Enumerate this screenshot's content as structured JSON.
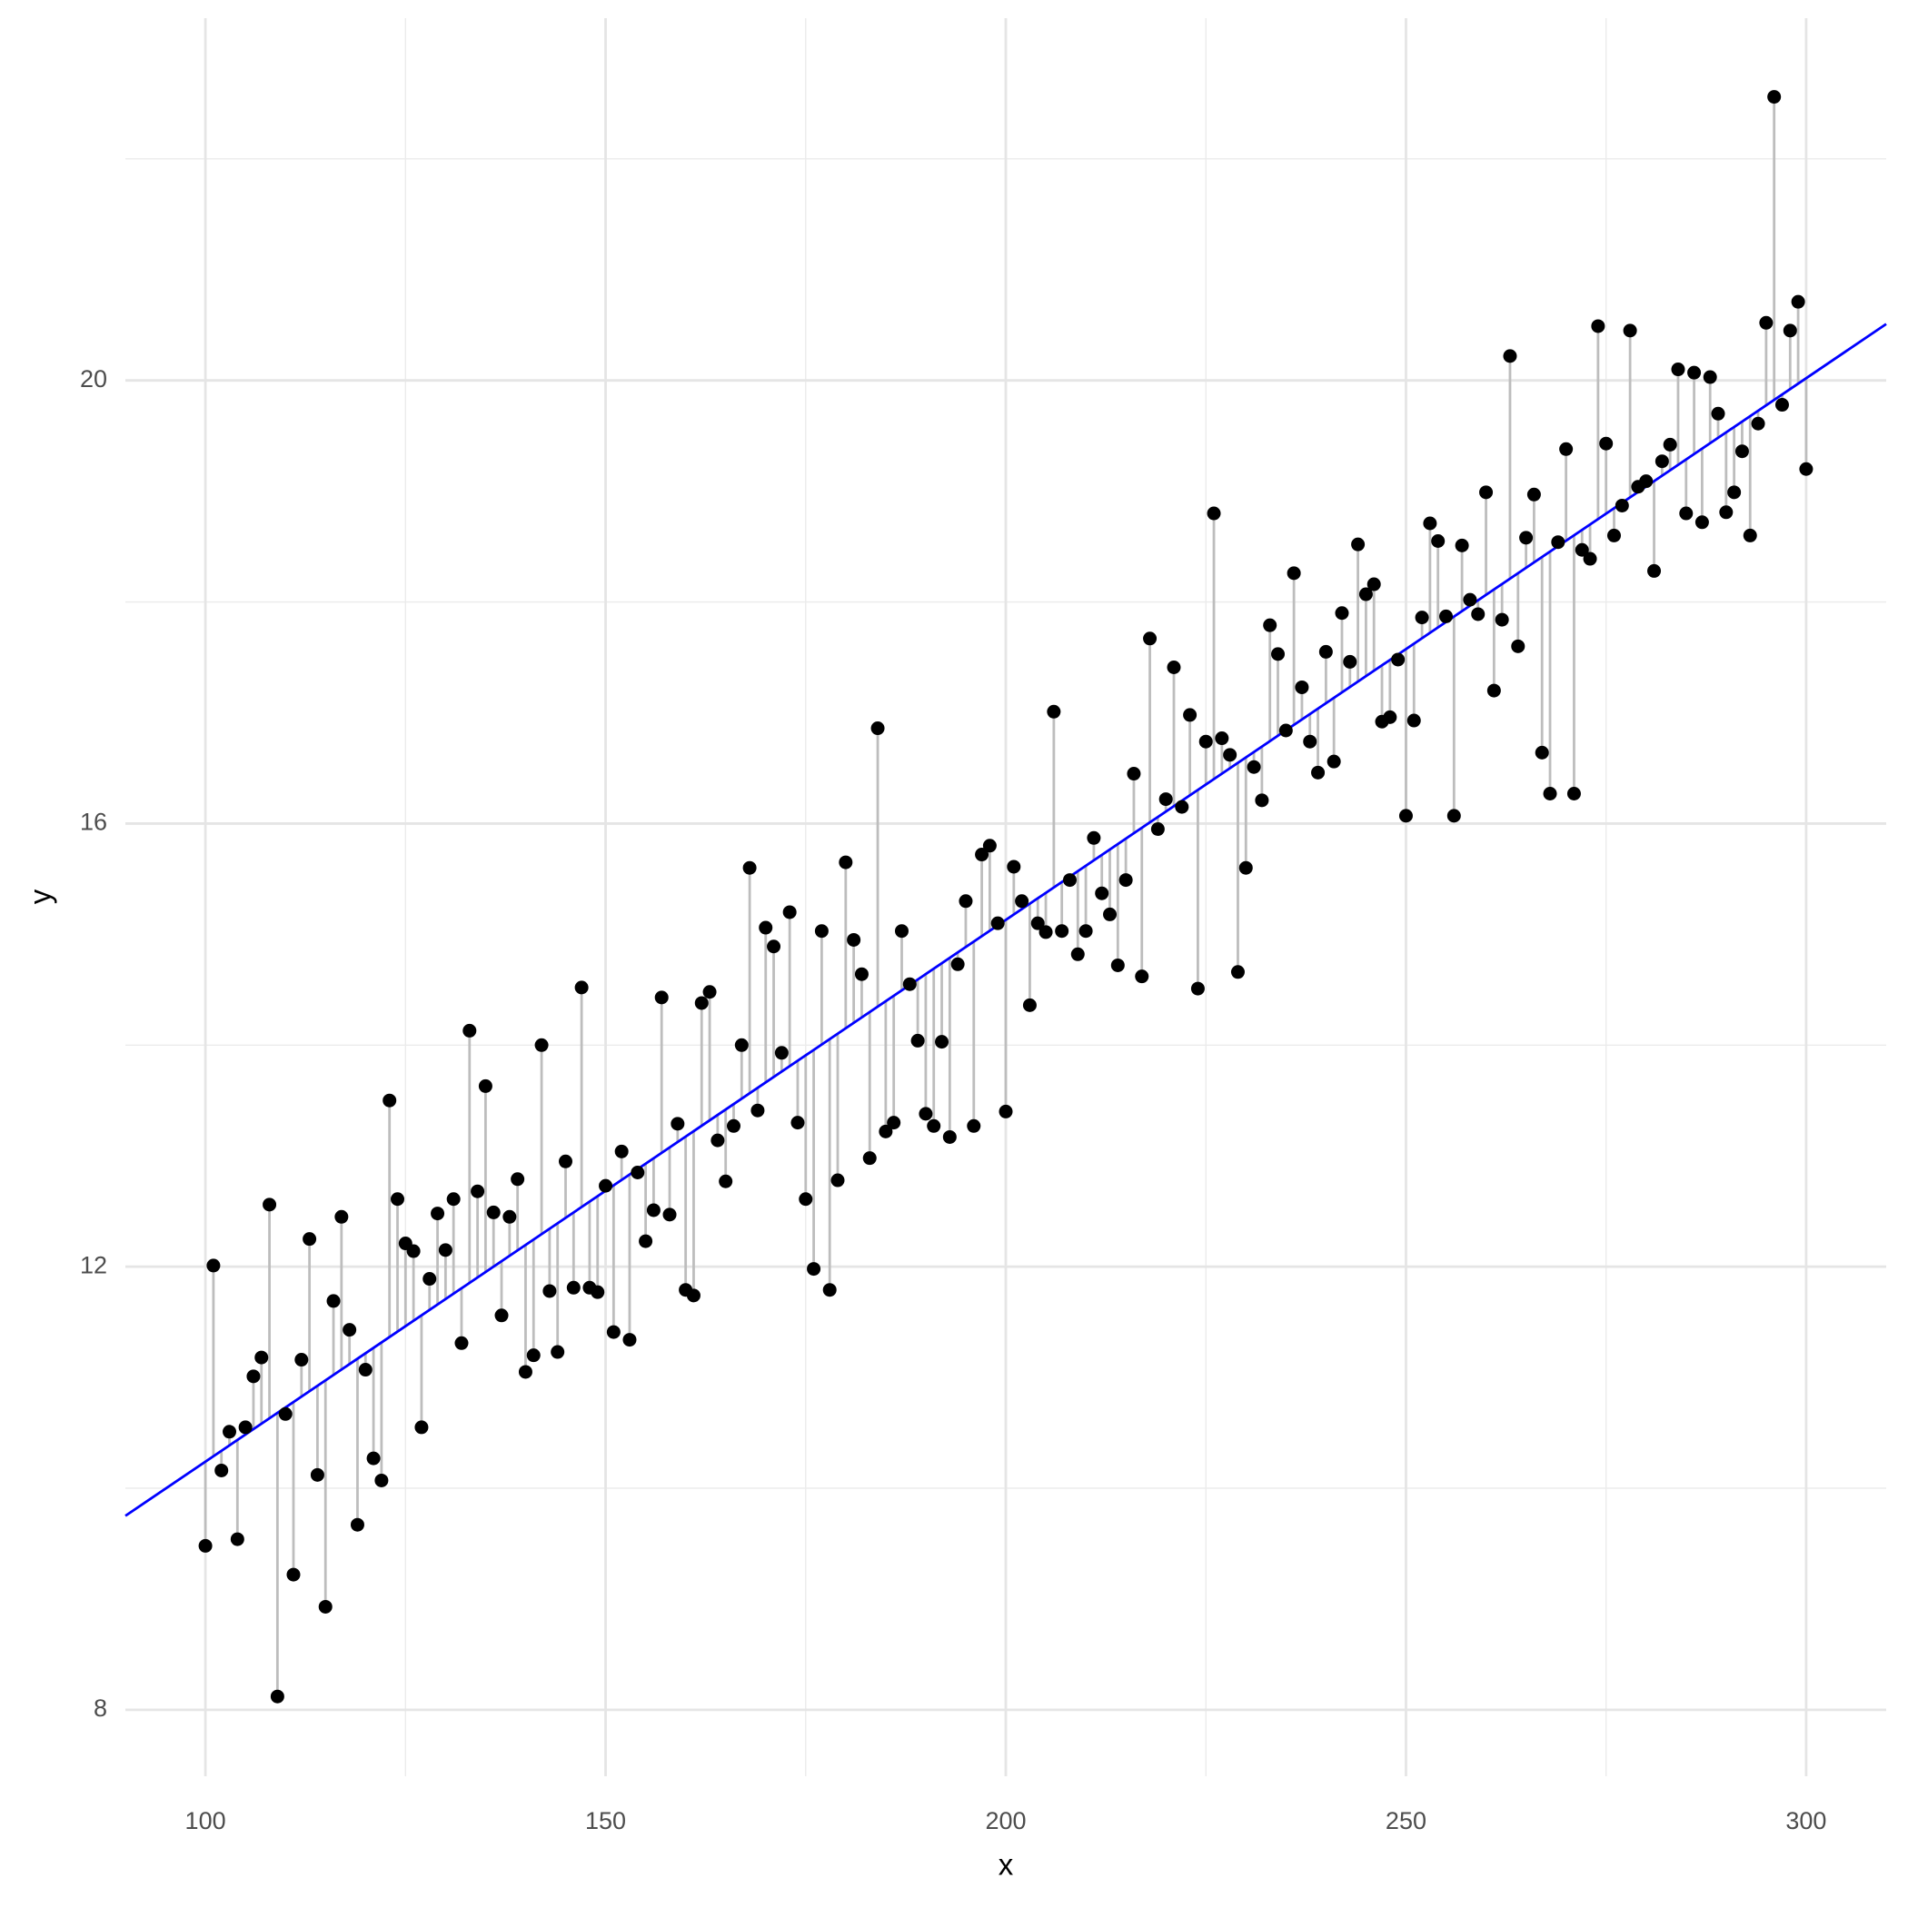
{
  "chart_data": {
    "type": "scatter",
    "x_label": "x",
    "y_label": "y",
    "x": [
      100,
      101,
      102,
      103,
      104,
      105,
      106,
      107,
      108,
      109,
      110,
      111,
      112,
      113,
      114,
      115,
      116,
      117,
      118,
      119,
      120,
      121,
      122,
      123,
      124,
      125,
      126,
      127,
      128,
      129,
      130,
      131,
      132,
      133,
      134,
      135,
      136,
      137,
      138,
      139,
      140,
      141,
      142,
      143,
      144,
      145,
      146,
      147,
      148,
      149,
      150,
      151,
      152,
      153,
      154,
      155,
      156,
      157,
      158,
      159,
      160,
      161,
      162,
      163,
      164,
      165,
      166,
      167,
      168,
      169,
      170,
      171,
      172,
      173,
      174,
      175,
      176,
      177,
      178,
      179,
      180,
      181,
      182,
      183,
      184,
      185,
      186,
      187,
      188,
      189,
      190,
      191,
      192,
      193,
      194,
      195,
      196,
      197,
      198,
      199,
      200,
      201,
      202,
      203,
      204,
      205,
      206,
      207,
      208,
      209,
      210,
      211,
      212,
      213,
      214,
      215,
      216,
      217,
      218,
      219,
      220,
      221,
      222,
      223,
      224,
      225,
      226,
      227,
      228,
      229,
      230,
      231,
      232,
      233,
      234,
      235,
      236,
      237,
      238,
      239,
      240,
      241,
      242,
      243,
      244,
      245,
      246,
      247,
      248,
      249,
      250,
      251,
      252,
      253,
      254,
      255,
      256,
      257,
      258,
      259,
      260,
      261,
      262,
      263,
      264,
      265,
      266,
      267,
      268,
      269,
      270,
      271,
      272,
      273,
      274,
      275,
      276,
      277,
      278,
      279,
      280,
      281,
      282,
      283,
      284,
      285,
      286,
      287,
      288,
      289,
      290,
      291,
      292,
      293,
      294,
      295,
      296,
      297,
      298,
      299,
      300
    ],
    "values": [
      9.48,
      12.01,
      10.16,
      10.51,
      9.54,
      10.55,
      11.01,
      11.18,
      12.56,
      8.12,
      10.67,
      9.22,
      11.16,
      12.25,
      10.12,
      8.93,
      11.69,
      12.45,
      11.43,
      9.67,
      11.07,
      10.27,
      10.07,
      13.5,
      12.61,
      12.21,
      12.14,
      10.55,
      11.89,
      12.48,
      12.15,
      12.61,
      11.31,
      14.13,
      12.68,
      13.63,
      12.49,
      11.56,
      12.45,
      12.79,
      11.05,
      11.2,
      14.0,
      11.78,
      11.23,
      12.95,
      11.81,
      14.52,
      11.81,
      11.77,
      12.73,
      11.41,
      13.04,
      11.34,
      12.85,
      12.23,
      12.51,
      14.43,
      12.47,
      13.29,
      11.79,
      11.74,
      14.38,
      14.48,
      13.14,
      12.77,
      13.27,
      14.0,
      15.6,
      13.41,
      15.06,
      14.89,
      13.93,
      15.2,
      13.3,
      12.61,
      11.98,
      15.03,
      11.79,
      12.78,
      15.65,
      14.95,
      14.64,
      12.98,
      16.86,
      13.22,
      13.3,
      15.03,
      14.55,
      14.04,
      13.38,
      13.27,
      14.03,
      13.17,
      14.73,
      15.3,
      13.27,
      15.72,
      15.8,
      15.1,
      13.4,
      15.61,
      15.3,
      14.36,
      15.1,
      15.02,
      17.01,
      15.03,
      15.49,
      14.82,
      15.03,
      15.87,
      15.37,
      15.18,
      14.72,
      15.49,
      16.45,
      14.62,
      17.67,
      15.95,
      16.22,
      17.41,
      16.15,
      16.98,
      14.51,
      16.74,
      18.8,
      16.77,
      16.62,
      14.66,
      15.6,
      16.51,
      16.21,
      17.79,
      17.53,
      16.84,
      18.26,
      17.23,
      16.74,
      16.46,
      17.55,
      16.56,
      17.9,
      17.46,
      18.52,
      18.07,
      18.16,
      16.92,
      16.96,
      17.48,
      16.07,
      16.93,
      17.86,
      18.71,
      18.55,
      17.87,
      16.07,
      18.51,
      18.02,
      17.89,
      18.99,
      17.2,
      17.84,
      20.22,
      17.6,
      18.58,
      18.97,
      16.64,
      16.27,
      18.54,
      19.38,
      16.27,
      18.47,
      18.39,
      20.49,
      19.43,
      18.6,
      18.87,
      20.45,
      19.04,
      19.09,
      18.28,
      19.27,
      19.42,
      20.1,
      18.8,
      20.07,
      18.72,
      20.03,
      19.7,
      18.81,
      18.99,
      19.36,
      18.6,
      19.61,
      20.52,
      22.56,
      19.78,
      20.45,
      20.71,
      19.2
    ],
    "point_color": "#000000",
    "residual_color": "#bdbdbd",
    "fit_color": "#0000ff",
    "fit": {
      "intercept": 10.24,
      "slope": 0.0489,
      "at_x": 100
    },
    "xlim": [
      90,
      310
    ],
    "xticks": [
      100,
      150,
      200,
      250,
      300
    ],
    "x_minor_grid": [
      125,
      175,
      225,
      275
    ],
    "ylim": [
      7.4,
      23.27
    ],
    "yticks": [
      8,
      12,
      16,
      20
    ],
    "y_minor_grid": [
      10,
      14,
      18,
      22
    ],
    "grid": true
  }
}
